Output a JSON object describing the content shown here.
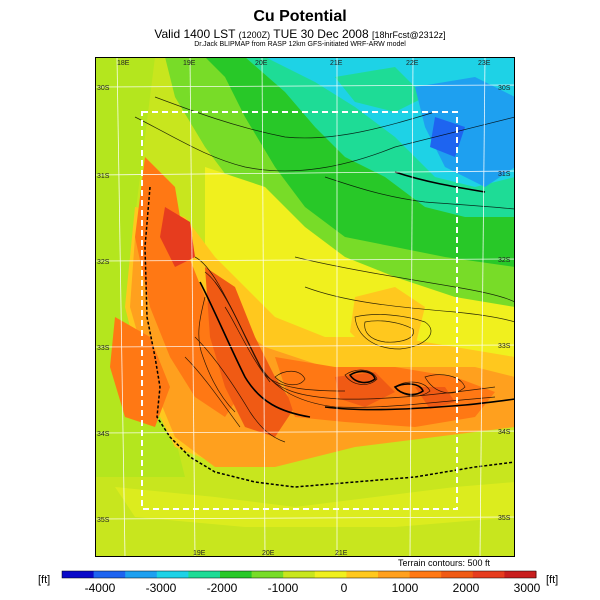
{
  "header": {
    "title": "Cu Potential",
    "valid_main": "Valid 1400 LST",
    "valid_zulu": "(1200Z)",
    "valid_date": "TUE 30 Dec 2008",
    "valid_run": "[18hrFcst@2312z]",
    "credit": "Dr.Jack BLIPMAP from RASP 12km GFS-initiated WRF-ARW model"
  },
  "map": {
    "lon_labels": [
      "18E",
      "19E",
      "20E",
      "21E",
      "22E",
      "23E"
    ],
    "lat_labels": [
      "30S",
      "31S",
      "32S",
      "33S",
      "34S",
      "35S"
    ],
    "terrain_note": "Terrain contours: 500 ft",
    "domain_box": "dashed white rectangle"
  },
  "colorbar": {
    "unit_left": "[ft]",
    "unit_right": "[ft]",
    "ticks": [
      "-4000",
      "-3000",
      "-2000",
      "-1000",
      "0",
      "1000",
      "2000",
      "3000"
    ],
    "colors": [
      "#0a0ac8",
      "#1e64f0",
      "#1ea0f0",
      "#1ed2e6",
      "#1edc96",
      "#28c828",
      "#78dc28",
      "#c8e61e",
      "#f0f01e",
      "#ffc81e",
      "#ffa01e",
      "#ff7814",
      "#f05a14",
      "#e63c1e",
      "#c81e1e"
    ]
  }
}
